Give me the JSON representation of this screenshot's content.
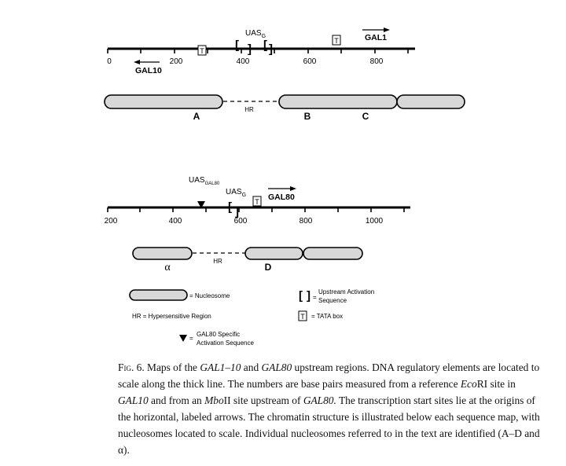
{
  "panel1": {
    "ticks": [
      "0",
      "200",
      "400",
      "600",
      "800"
    ],
    "uas_label": "UAS",
    "uas_sub": "G",
    "gene_right": "GAL1",
    "gene_left": "GAL10",
    "tata_letter": "T",
    "bracket_open": "[",
    "bracket_close": "]",
    "hr_label": "HR",
    "nucleosome_labels": [
      "A",
      "B",
      "C"
    ]
  },
  "panel2": {
    "ticks": [
      "200",
      "400",
      "600",
      "800",
      "1000"
    ],
    "uas_gal80_label": "UAS",
    "uas_gal80_sub": "GAL80",
    "uas_label": "UAS",
    "uas_sub": "G",
    "gene_right": "GAL80",
    "tata_letter": "T",
    "bracket_open": "[",
    "bracket_close": "]",
    "hr_label": "HR",
    "nucleosome_labels": [
      "α",
      "D"
    ]
  },
  "legend": {
    "nucleosome": "= Nucleosome",
    "hr": "HR = Hypersensitive Region",
    "gal80_line1": "GAL80 Specific",
    "gal80_line2": "Activation Sequence",
    "gal80_eq": "=",
    "uas_line1": "Upstream Activation",
    "uas_line2": "Sequence",
    "uas_eq": "=",
    "tata": "= TATA box",
    "tata_letter": "T",
    "bracket_open": "[",
    "bracket_close": "]"
  },
  "caption": {
    "fig_label": "Fig. 6.",
    "p1": " Maps of the ",
    "i1": "GAL1–10",
    "p2": " and ",
    "i2": "GAL80",
    "p3": " upstream regions. DNA regulatory elements are located to scale along the thick line. The numbers are base pairs measured from a reference ",
    "i3": "Eco",
    "p4": "RI site in ",
    "i4": "GAL10",
    "p5": " and from an ",
    "i5": "Mbo",
    "p6": "II site upstream of ",
    "i6": "GAL80.",
    "p7": " The transcription start sites lie at the origins of the horizontal, labeled arrows. The chromatin structure is illustrated below each sequence map, with nucleosomes located to scale. Individual nucleosomes referred to in the text are identified (A–D and α)."
  }
}
